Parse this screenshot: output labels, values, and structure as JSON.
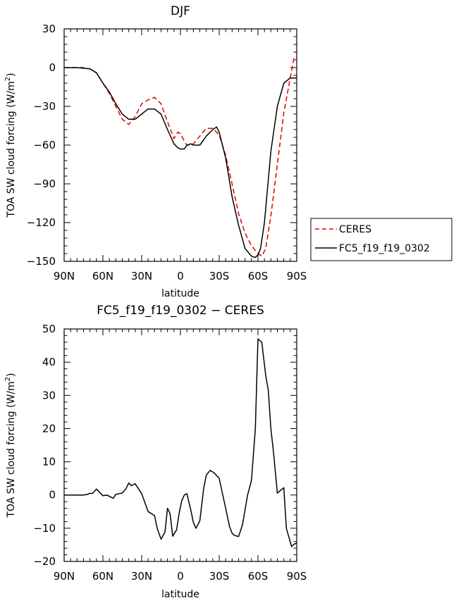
{
  "chart_data": [
    {
      "type": "line",
      "title": "DJF",
      "xlabel": "latitude",
      "ylabel": "TOA SW cloud forcing (W/m",
      "ylabel_sup": "2",
      "ylabel_end": ")",
      "x_tick_labels": [
        "90N",
        "60N",
        "30N",
        "0",
        "30S",
        "60S",
        "90S"
      ],
      "x_ticks": [
        90,
        60,
        30,
        0,
        -30,
        -60,
        -90
      ],
      "xlim": [
        90,
        -90
      ],
      "ylim": [
        -150,
        30
      ],
      "y_ticks": [
        30,
        0,
        -30,
        -60,
        -90,
        -120,
        -150
      ],
      "y_tick_labels": [
        "30",
        "0",
        "−30",
        "−60",
        "−90",
        "−120",
        "−150"
      ],
      "legend_position": "right",
      "series": [
        {
          "name": "CERES",
          "color": "#e00000",
          "dash": true,
          "x": [
            90,
            85,
            80,
            75,
            70,
            65,
            60,
            55,
            50,
            45,
            40,
            35,
            30,
            25,
            20,
            15,
            10,
            5,
            2,
            0,
            -3,
            -5,
            -8,
            -10,
            -15,
            -20,
            -25,
            -30,
            -35,
            -40,
            -45,
            -50,
            -55,
            -60,
            -63,
            -66,
            -70,
            -75,
            -80,
            -85,
            -88,
            -90
          ],
          "y": [
            0,
            0,
            0,
            0,
            -1,
            -4,
            -12,
            -20,
            -30,
            -40,
            -44,
            -38,
            -28,
            -25,
            -23,
            -28,
            -42,
            -55,
            -50,
            -51,
            -57,
            -60,
            -60,
            -59,
            -53,
            -47,
            -47,
            -52,
            -68,
            -90,
            -113,
            -128,
            -138,
            -144,
            -146,
            -140,
            -115,
            -75,
            -35,
            -8,
            8,
            8
          ]
        },
        {
          "name": "FC5_f19_f19_0302",
          "color": "#000000",
          "dash": false,
          "x": [
            90,
            85,
            80,
            75,
            70,
            65,
            60,
            55,
            50,
            45,
            40,
            35,
            30,
            25,
            20,
            15,
            10,
            5,
            2,
            0,
            -3,
            -5,
            -8,
            -10,
            -15,
            -20,
            -25,
            -28,
            -30,
            -35,
            -40,
            -45,
            -50,
            -55,
            -58,
            -60,
            -62,
            -65,
            -70,
            -75,
            -80,
            -85,
            -90
          ],
          "y": [
            0,
            0,
            0,
            -0.5,
            -1,
            -4,
            -12,
            -19,
            -28,
            -36,
            -40,
            -40,
            -36,
            -32,
            -32,
            -36,
            -48,
            -59,
            -62,
            -63,
            -63,
            -60,
            -59,
            -60,
            -60,
            -53,
            -48,
            -46,
            -50,
            -70,
            -100,
            -122,
            -140,
            -146,
            -147,
            -145,
            -140,
            -120,
            -65,
            -30,
            -12,
            -8,
            -8
          ]
        }
      ]
    },
    {
      "type": "line",
      "title": "FC5_f19_f19_0302 − CERES",
      "xlabel": "latitude",
      "ylabel": "TOA SW cloud forcing (W/m",
      "ylabel_sup": "2",
      "ylabel_end": ")",
      "x_tick_labels": [
        "90N",
        "60N",
        "30N",
        "0",
        "30S",
        "60S",
        "90S"
      ],
      "x_ticks": [
        90,
        60,
        30,
        0,
        -30,
        -60,
        -90
      ],
      "xlim": [
        90,
        -90
      ],
      "ylim": [
        -20,
        50
      ],
      "y_ticks": [
        50,
        40,
        30,
        20,
        10,
        0,
        -10,
        -20
      ],
      "y_tick_labels": [
        "50",
        "40",
        "30",
        "20",
        "10",
        "0",
        "−10",
        "−20"
      ],
      "series": [
        {
          "name": "",
          "color": "#000000",
          "dash": false,
          "x": [
            90,
            85,
            80,
            75,
            72,
            70,
            68,
            65,
            60,
            57,
            55,
            52,
            50,
            45,
            42,
            40,
            38,
            35,
            30,
            25,
            20,
            18,
            15,
            12,
            10,
            8,
            6,
            3,
            1,
            -1,
            -3,
            -5,
            -8,
            -10,
            -12,
            -15,
            -18,
            -20,
            -23,
            -26,
            -30,
            -35,
            -38,
            -40,
            -42,
            -45,
            -48,
            -52,
            -55,
            -58,
            -60,
            -63,
            -66,
            -68,
            -70,
            -72,
            -75,
            -80,
            -82,
            -86,
            -88,
            -90
          ],
          "y": [
            0,
            0,
            0,
            0,
            0.2,
            0.5,
            0.5,
            1.8,
            -0.2,
            0,
            -0.4,
            -1,
            0.2,
            0.6,
            2,
            3.6,
            2.8,
            3.4,
            0.4,
            -5,
            -6.2,
            -10,
            -13.3,
            -11.2,
            -4,
            -5.6,
            -12.4,
            -10.5,
            -5.5,
            -1.8,
            0,
            0.4,
            -4.5,
            -8.2,
            -10,
            -7.8,
            2,
            6,
            7.4,
            6.7,
            5,
            -4,
            -9.5,
            -11.5,
            -12.2,
            -12.5,
            -9,
            0,
            4.4,
            20,
            47,
            46,
            36,
            31.5,
            20,
            13,
            0.6,
            2.2,
            -10,
            -15.5,
            -14.8,
            -14.5
          ]
        }
      ]
    }
  ]
}
